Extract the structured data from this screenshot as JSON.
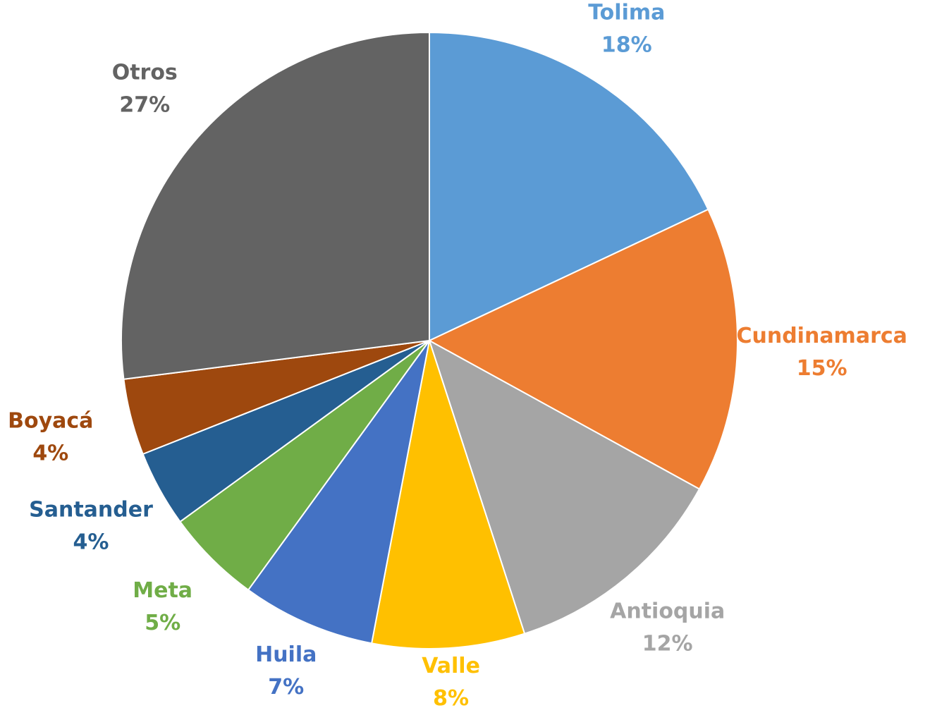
{
  "chart_data": {
    "type": "pie",
    "categories": [
      "Tolima",
      "Cundinamarca",
      "Antioquia",
      "Valle",
      "Huila",
      "Meta",
      "Santander",
      "Boyacá",
      "Otros"
    ],
    "values": [
      18,
      15,
      12,
      8,
      7,
      5,
      4,
      4,
      27
    ],
    "value_labels": [
      "18%",
      "15%",
      "12%",
      "8%",
      "7%",
      "5%",
      "4%",
      "4%",
      "27%"
    ],
    "colors": [
      "#5b9bd5",
      "#ed7d31",
      "#a5a5a5",
      "#ffc000",
      "#4472c4",
      "#70ad47",
      "#255e91",
      "#9e480e",
      "#636363"
    ]
  }
}
